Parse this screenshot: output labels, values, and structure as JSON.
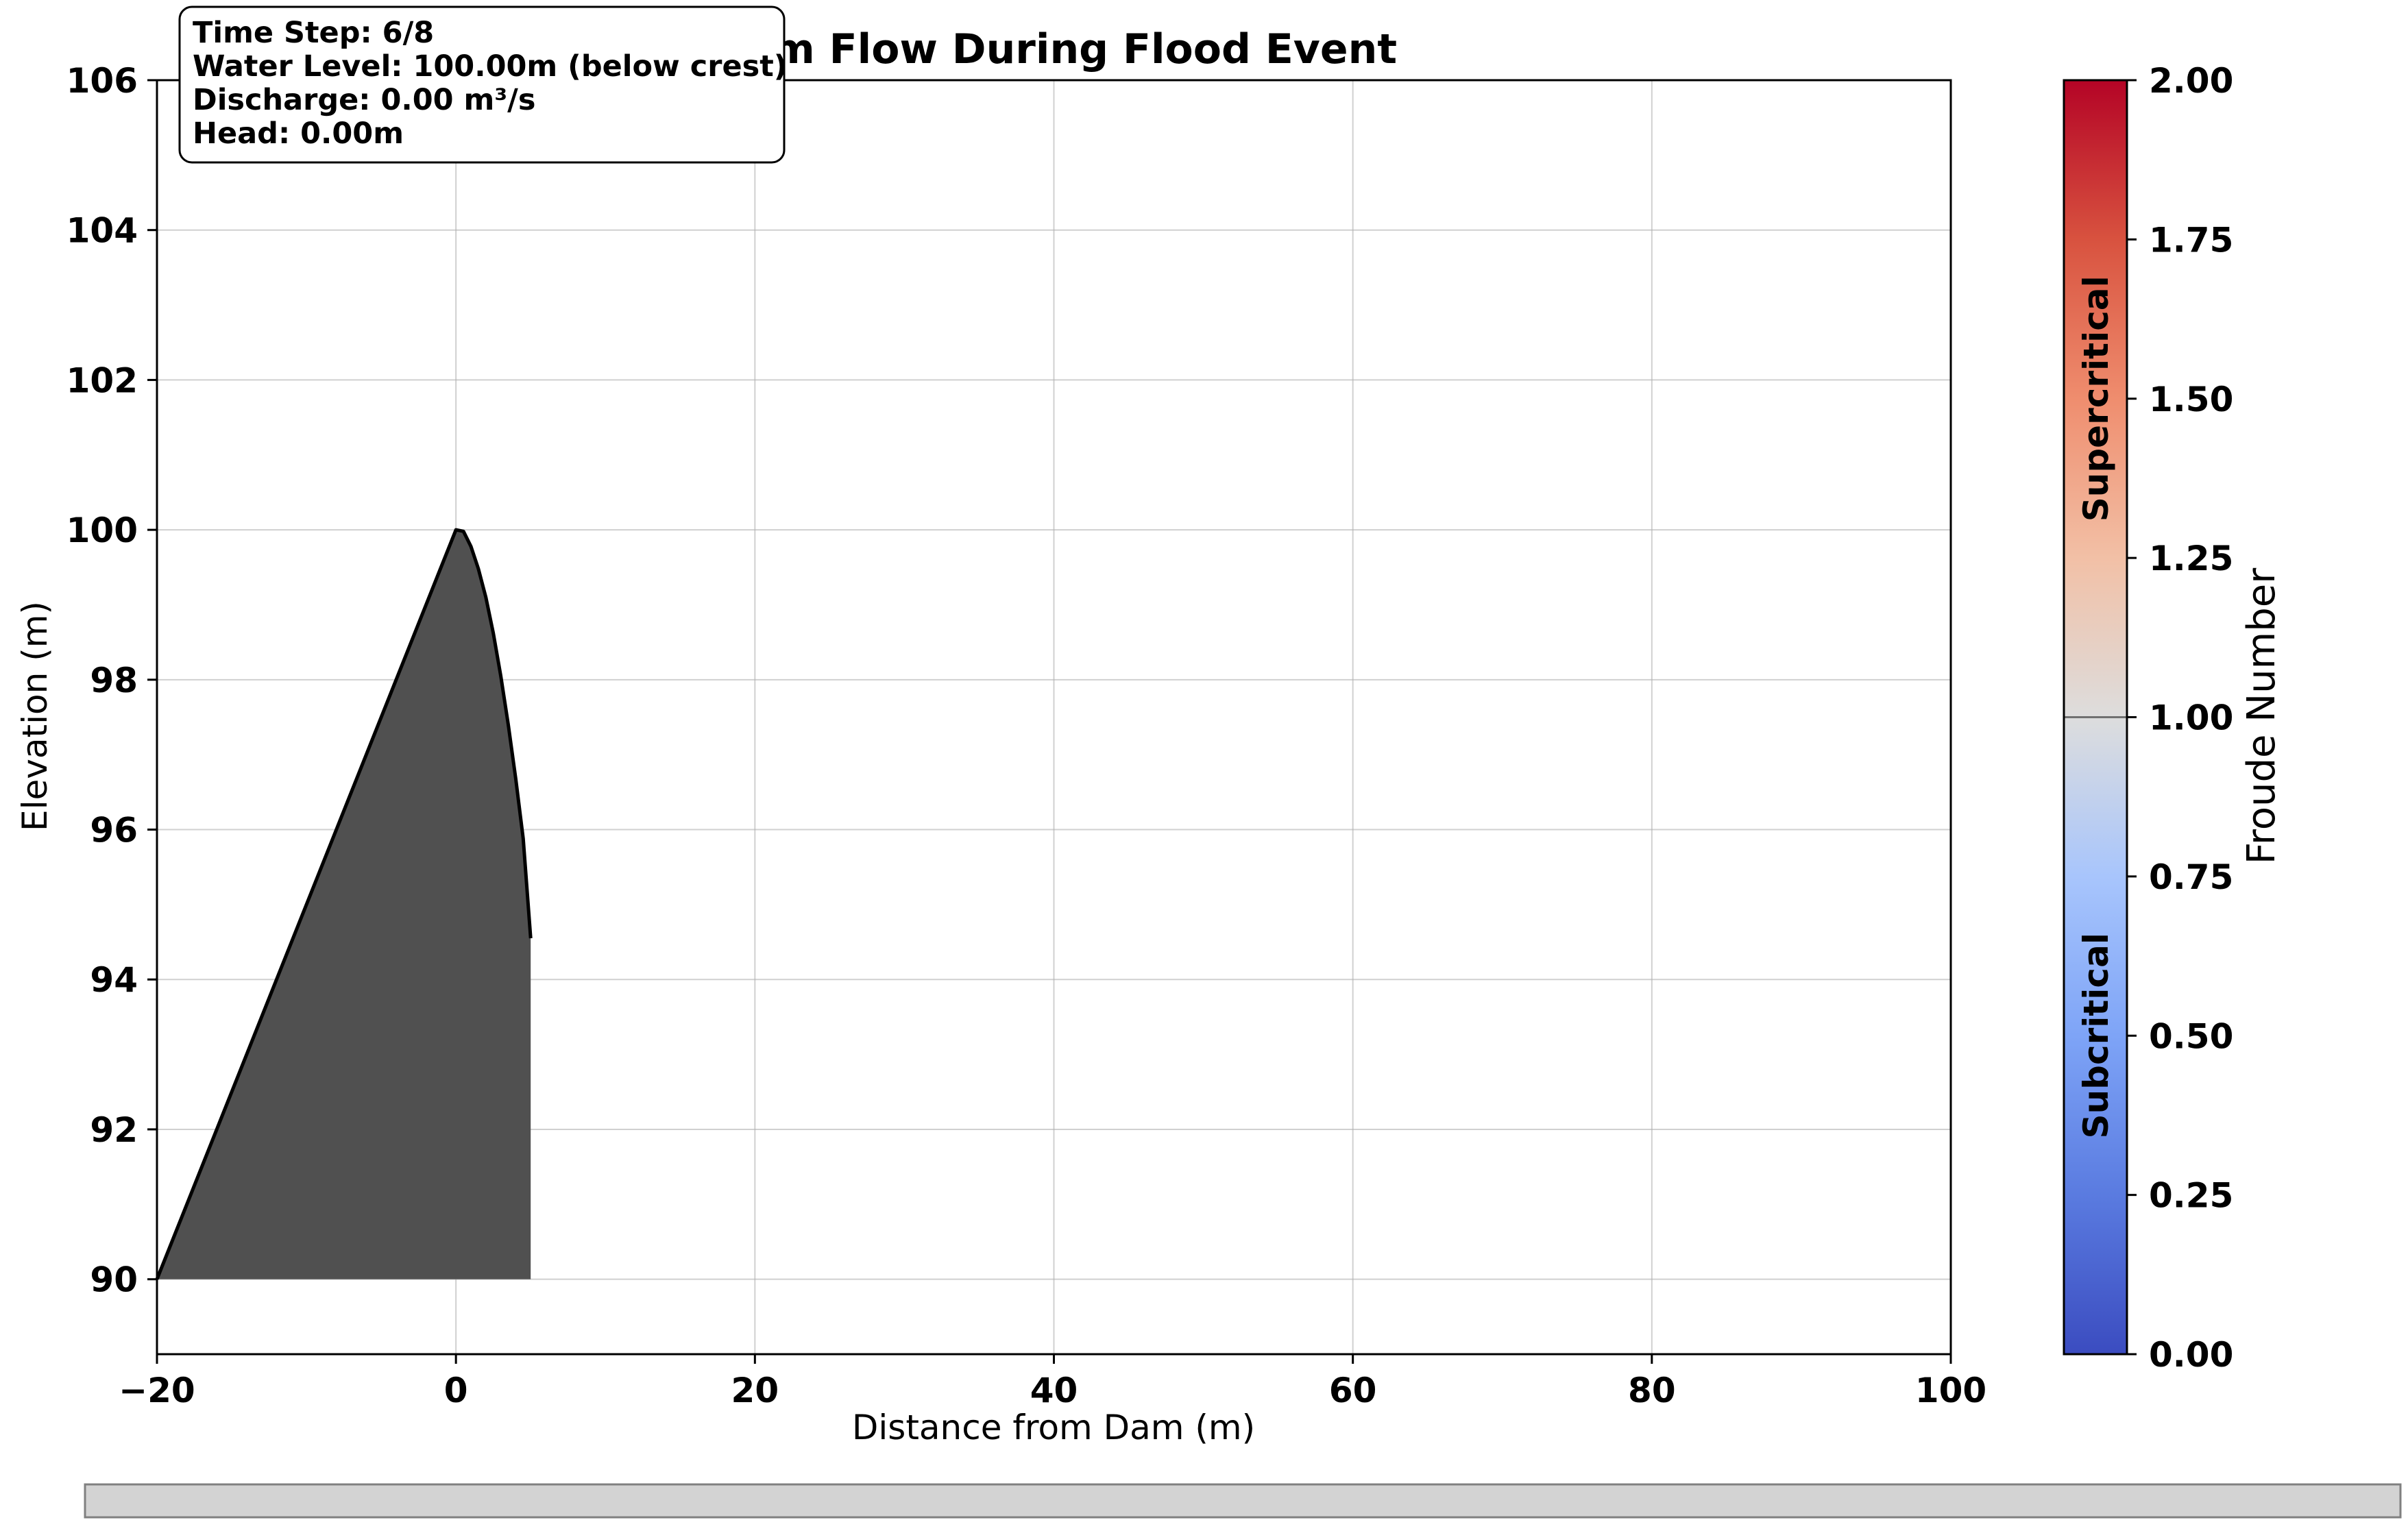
{
  "chart_data": {
    "type": "area",
    "title": "Dam Flow During Flood Event",
    "xlabel": "Distance from Dam (m)",
    "ylabel": "Elevation (m)",
    "xlim": [
      -20,
      100
    ],
    "ylim": [
      89,
      106
    ],
    "xticks": [
      -20,
      0,
      20,
      40,
      60,
      80,
      100
    ],
    "xtick_labels": [
      "−20",
      "0",
      "20",
      "40",
      "60",
      "80",
      "100"
    ],
    "yticks": [
      90,
      92,
      94,
      96,
      98,
      100,
      102,
      104,
      106
    ],
    "ytick_labels": [
      "90",
      "92",
      "94",
      "96",
      "98",
      "100",
      "102",
      "104",
      "106"
    ],
    "grid": true,
    "dam_profile": {
      "fill_color": "#505050",
      "edge_color": "#000000",
      "x": [
        -20,
        0,
        0.5,
        1,
        1.5,
        2,
        2.5,
        3,
        3.5,
        4,
        4.5,
        5,
        5,
        -20
      ],
      "y": [
        90,
        100,
        99.98,
        99.78,
        99.48,
        99.1,
        98.62,
        98.05,
        97.4,
        96.68,
        95.88,
        94.55,
        90,
        90
      ]
    },
    "info_box": {
      "lines": [
        "Time Step: 6/8",
        "Water Level: 100.00m (below crest)",
        "Discharge: 0.00 m³/s",
        "Head: 0.00m"
      ]
    },
    "colorbar": {
      "label": "Froude Number",
      "colormap": "coolwarm",
      "range": [
        0,
        2
      ],
      "ticks": [
        0,
        0.25,
        0.5,
        0.75,
        1.0,
        1.25,
        1.5,
        1.75,
        2.0
      ],
      "tick_labels": [
        "0.00",
        "0.25",
        "0.50",
        "0.75",
        "1.00",
        "1.25",
        "1.50",
        "1.75",
        "2.00"
      ],
      "threshold_line": 1.0,
      "regions": [
        {
          "label": "Subcritical",
          "center": 0.5
        },
        {
          "label": "Supercritical",
          "center": 1.5
        }
      ],
      "color_low": "#3b4cc0",
      "color_mid": "#dddddd",
      "color_high": "#b40426"
    }
  },
  "slider": {
    "value": 0
  }
}
